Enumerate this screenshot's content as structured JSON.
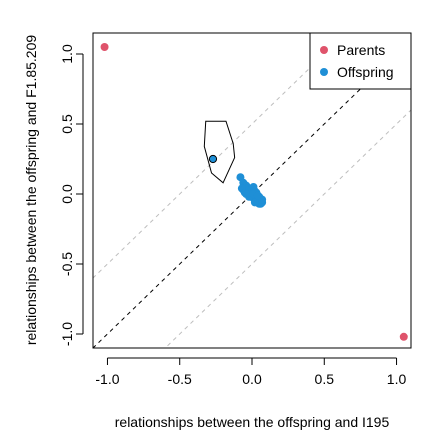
{
  "chart_data": {
    "type": "scatter",
    "xlabel": "relationships between the offspring and I195",
    "ylabel": "relationships between the offspring and F1.85.209",
    "xlim": [
      -1.1,
      1.1
    ],
    "ylim": [
      -1.1,
      1.15
    ],
    "x_ticks": [
      -1.0,
      -0.5,
      0.0,
      0.5,
      1.0
    ],
    "x_tick_labels": [
      "-1.0",
      "-0.5",
      "0.0",
      "0.5",
      "1.0"
    ],
    "y_ticks": [
      -1.0,
      -0.5,
      0.0,
      0.5,
      1.0
    ],
    "y_tick_labels": [
      "-1.0",
      "-0.5",
      "0.0",
      "0.5",
      "1.0"
    ],
    "grid": false,
    "legend_position": "top-right",
    "reference_lines": {
      "identity": {
        "slope": 1,
        "intercept": 0,
        "color": "#000000",
        "dash": "dashed"
      },
      "offsets": [
        {
          "slope": 1,
          "intercept": 0.5,
          "color": "#bebebe",
          "dash": "dashed"
        },
        {
          "slope": 1,
          "intercept": -0.5,
          "color": "#bebebe",
          "dash": "dashed"
        }
      ]
    },
    "series": [
      {
        "name": "Parents",
        "color": "#df536b",
        "points": [
          [
            -1.02,
            1.05
          ],
          [
            1.05,
            -1.02
          ]
        ]
      },
      {
        "name": "Offspring",
        "color": "#1f8fd6",
        "points": [
          [
            -0.08,
            0.12
          ],
          [
            -0.06,
            0.08
          ],
          [
            -0.05,
            0.05
          ],
          [
            -0.04,
            0.06
          ],
          [
            -0.03,
            0.04
          ],
          [
            -0.07,
            0.04
          ],
          [
            -0.06,
            0.03
          ],
          [
            -0.05,
            0.01
          ],
          [
            -0.04,
            0.02
          ],
          [
            -0.02,
            0.03
          ],
          [
            -0.03,
            0.0
          ],
          [
            -0.02,
            0.01
          ],
          [
            -0.01,
            0.02
          ],
          [
            0.0,
            0.01
          ],
          [
            -0.01,
            -0.01
          ],
          [
            0.0,
            -0.02
          ],
          [
            0.01,
            -0.01
          ],
          [
            0.02,
            0.0
          ],
          [
            0.01,
            -0.03
          ],
          [
            0.02,
            -0.04
          ],
          [
            0.03,
            -0.02
          ],
          [
            0.04,
            -0.03
          ],
          [
            0.03,
            -0.05
          ],
          [
            0.05,
            -0.04
          ],
          [
            0.04,
            -0.06
          ],
          [
            0.06,
            -0.05
          ],
          [
            0.05,
            -0.07
          ],
          [
            0.07,
            -0.06
          ],
          [
            0.0,
            0.04
          ],
          [
            0.02,
            0.02
          ],
          [
            0.01,
            0.05
          ],
          [
            0.03,
            0.01
          ],
          [
            -0.02,
            -0.02
          ],
          [
            0.05,
            -0.02
          ],
          [
            0.06,
            -0.07
          ],
          [
            0.02,
            -0.06
          ],
          [
            0.07,
            -0.04
          ],
          [
            -0.04,
            0.0
          ],
          [
            0.01,
            0.0
          ],
          [
            0.04,
            -0.01
          ]
        ]
      }
    ],
    "highlight_point": {
      "x": -0.27,
      "y": 0.25,
      "fill": "#1f8fd6",
      "stroke": "#000000"
    },
    "hull_polygon": [
      [
        -0.32,
        0.52
      ],
      [
        -0.18,
        0.52
      ],
      [
        -0.13,
        0.36
      ],
      [
        -0.12,
        0.26
      ],
      [
        -0.2,
        0.08
      ],
      [
        -0.28,
        0.15
      ],
      [
        -0.33,
        0.34
      ]
    ]
  }
}
